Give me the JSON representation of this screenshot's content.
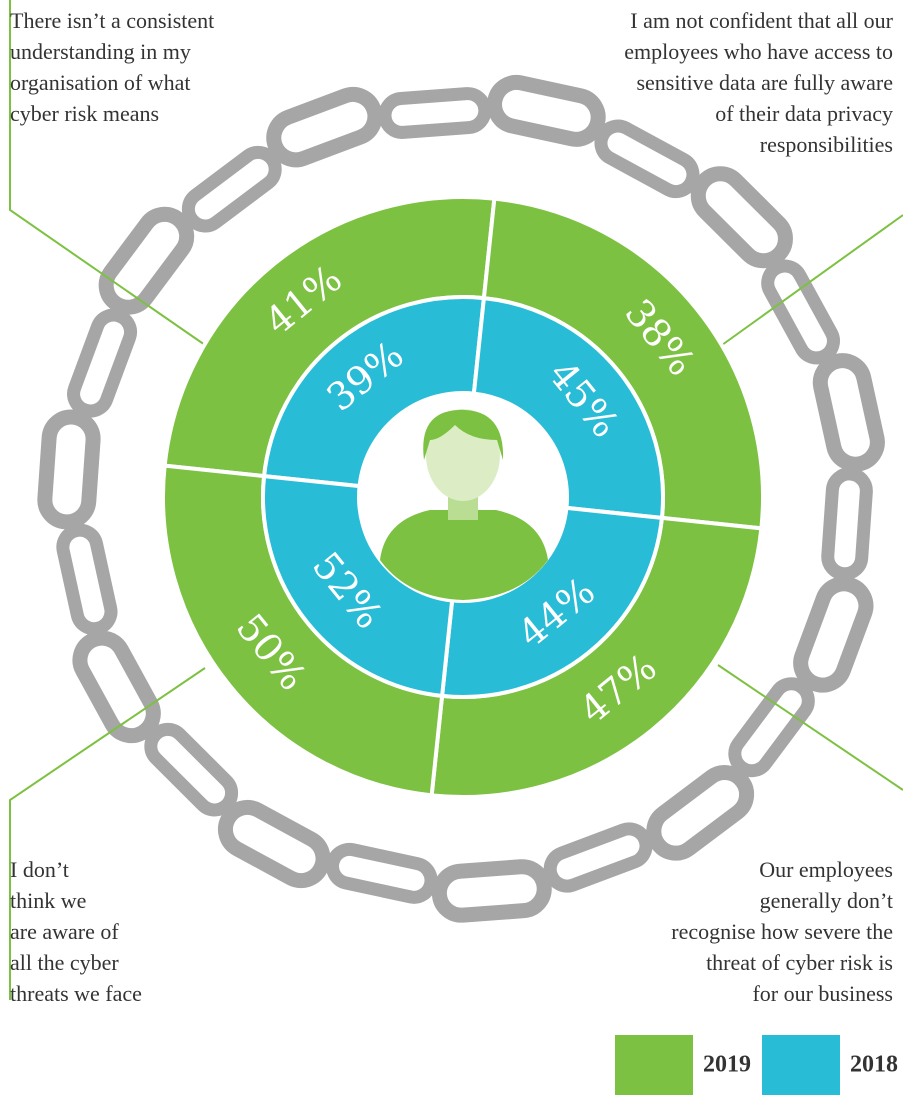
{
  "chart_data": {
    "type": "radial-quadrants",
    "categories": [
      [
        "There isn’t a consistent",
        "understanding in my",
        "organisation of what",
        "cyber risk means"
      ],
      [
        "I am not confident that all our",
        "employees who have access to",
        "sensitive data are fully aware",
        "of their data privacy",
        "responsibilities"
      ],
      [
        "Our employees",
        "generally don’t",
        "recognise how severe the",
        "threat  of cyber risk is",
        "for our business"
      ],
      [
        "I don’t",
        "think we",
        "are aware of",
        "all the cyber",
        "threats we face"
      ]
    ],
    "series": [
      {
        "name": "2019",
        "color": "#7dc142",
        "values": [
          41,
          38,
          47,
          50
        ],
        "value_labels": [
          "41%",
          "38%",
          "47%",
          "50%"
        ]
      },
      {
        "name": "2018",
        "color": "#29bcd6",
        "values": [
          39,
          45,
          44,
          52
        ],
        "value_labels": [
          "39%",
          "45%",
          "44%",
          "52%"
        ]
      }
    ]
  }
}
